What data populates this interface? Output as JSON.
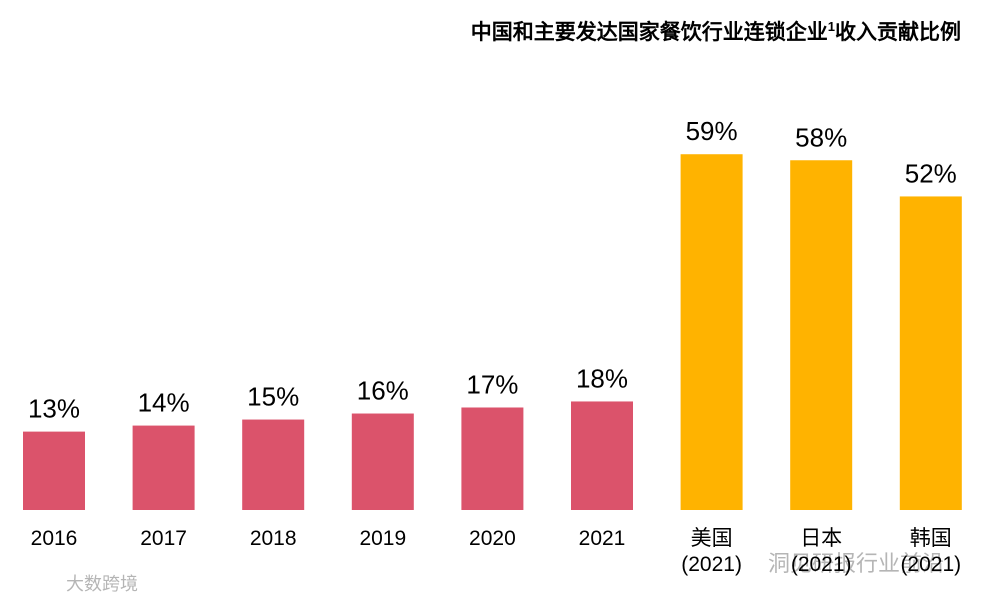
{
  "chart_data": {
    "type": "bar",
    "title": "中国和主要发达国家餐饮行业连锁企业",
    "title_footnote": "1",
    "title_end": "收入贡献比例",
    "categories": [
      "2016",
      "2017",
      "2018",
      "2019",
      "2020",
      "2021",
      "美国\n(2021)",
      "日本\n(2021)",
      "韩国\n(2021)"
    ],
    "values": [
      13,
      14,
      15,
      16,
      17,
      18,
      59,
      58,
      52
    ],
    "value_labels": [
      "13%",
      "14%",
      "15%",
      "16%",
      "17%",
      "18%",
      "59%",
      "58%",
      "52%"
    ],
    "colors": [
      "#db536b",
      "#db536b",
      "#db536b",
      "#db536b",
      "#db536b",
      "#db536b",
      "#ffb300",
      "#ffb300",
      "#ffb300"
    ],
    "watermarks": [
      "洞见研报行业前沿",
      "大数跨境"
    ]
  }
}
